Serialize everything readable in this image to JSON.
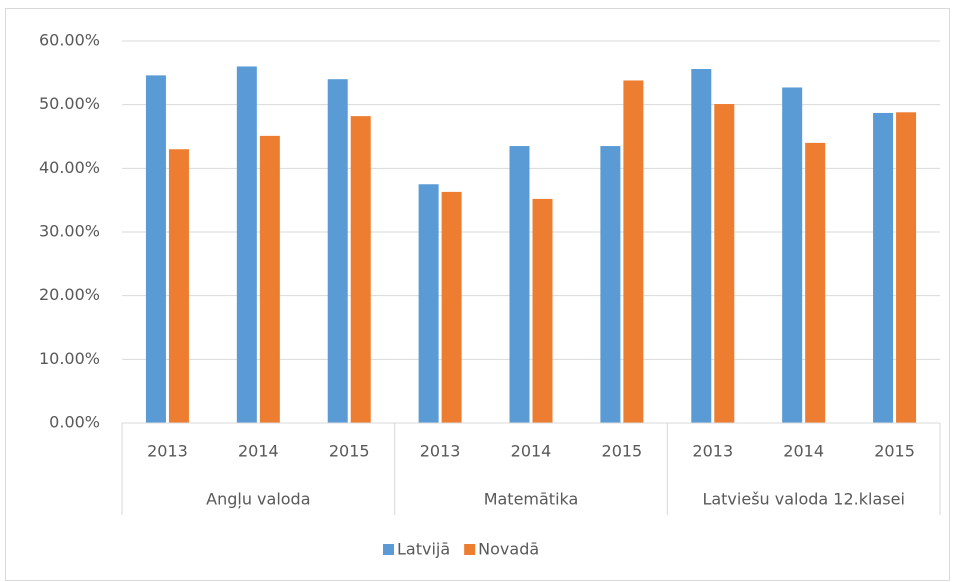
{
  "chart_data": {
    "type": "bar",
    "groups": [
      {
        "label": "Angļu valoda",
        "categories": [
          "2013",
          "2014",
          "2015"
        ]
      },
      {
        "label": "Matemātika",
        "categories": [
          "2013",
          "2014",
          "2015"
        ]
      },
      {
        "label": "Latviešu valoda 12.klasei",
        "categories": [
          "2013",
          "2014",
          "2015"
        ]
      }
    ],
    "series": [
      {
        "name": "Latvijā",
        "color": "#5b9bd5",
        "values": [
          54.6,
          56.0,
          54.0,
          37.5,
          43.5,
          43.5,
          55.6,
          52.7,
          48.7
        ]
      },
      {
        "name": "Novadā",
        "color": "#ed7d31",
        "values": [
          43.0,
          45.1,
          48.2,
          36.3,
          35.2,
          53.8,
          50.1,
          44.0,
          48.8
        ]
      }
    ],
    "ylim": [
      0,
      60
    ],
    "yticks": [
      {
        "value": 0,
        "label": "0.00%"
      },
      {
        "value": 10,
        "label": "10.00%"
      },
      {
        "value": 20,
        "label": "20.00%"
      },
      {
        "value": 30,
        "label": "30.00%"
      },
      {
        "value": 40,
        "label": "40.00%"
      },
      {
        "value": 50,
        "label": "50.00%"
      },
      {
        "value": 60,
        "label": "60.00%"
      }
    ],
    "grid": true,
    "legend": "bottom"
  }
}
